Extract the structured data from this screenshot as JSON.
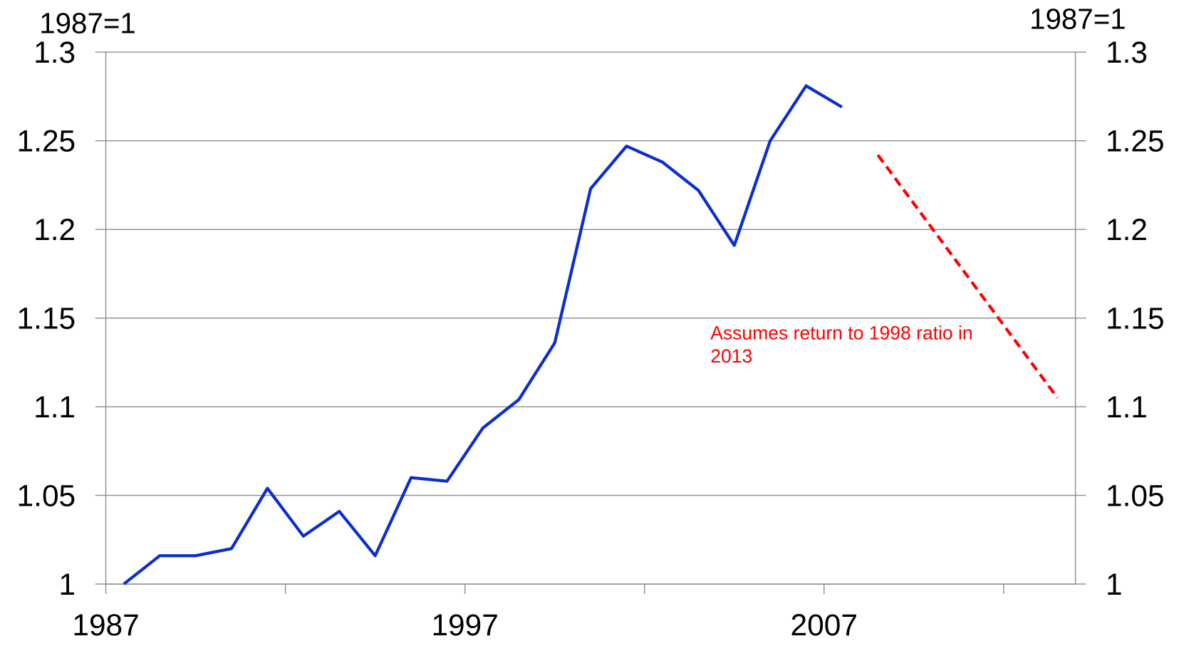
{
  "chart_data": {
    "type": "line",
    "y_label": "1987=1",
    "y2_label": "1987=1",
    "xlim": [
      1987,
      2014
    ],
    "xticks": [
      1987,
      {
        "value": 1992,
        "label": null
      },
      1997,
      {
        "value": 2002,
        "label": null
      },
      2007,
      {
        "value": 2012,
        "label": null
      }
    ],
    "ylim": [
      1,
      1.3
    ],
    "yticks": [
      1,
      1.05,
      1.1,
      1.15,
      1.2,
      1.25,
      1.3
    ],
    "y2lim": [
      1,
      1.3
    ],
    "y2ticks": [
      1,
      1.05,
      1.1,
      1.15,
      1.2,
      1.25,
      1.3
    ],
    "grid": true,
    "series": [
      {
        "color": "#0a2ecf",
        "dash": false,
        "x": [
          1987.5,
          1988.5,
          1989.5,
          1990.5,
          1991.5,
          1992.5,
          1993.5,
          1994.5,
          1995.5,
          1996.5,
          1997.5,
          1998.5,
          1999.5,
          2000.5,
          2001.5,
          2002.5,
          2003.5,
          2004.5,
          2005.5,
          2006.5,
          2007.5
        ],
        "values": [
          1.0,
          1.016,
          1.016,
          1.02,
          1.054,
          1.027,
          1.041,
          1.016,
          1.06,
          1.058,
          1.088,
          1.104,
          1.136,
          1.223,
          1.247,
          1.238,
          1.222,
          1.191,
          1.25,
          1.281,
          1.269
        ]
      },
      {
        "color": "#ff0000",
        "dash": true,
        "x": [
          2008.5,
          2013.5
        ],
        "values": [
          1.242,
          1.105
        ]
      }
    ],
    "annotation": {
      "lines": [
        "Assumes  return to 1998 ratio in",
        "2013"
      ],
      "color": "#ff0000"
    }
  }
}
